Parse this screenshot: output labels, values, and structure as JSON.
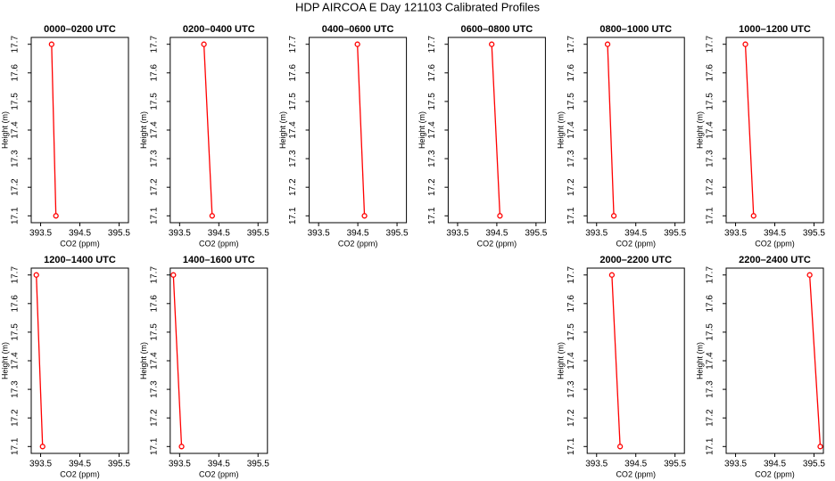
{
  "title": "HDP AIRCOA E  Day 121103  Calibrated Profiles",
  "chart_data": [
    {
      "type": "line",
      "title": "0000–0200 UTC",
      "x_label": "CO2 (ppm)",
      "y_label": "Height (m)",
      "x": [
        393.78,
        393.89
      ],
      "values": [
        17.7,
        17.1
      ],
      "color": "#ff0000",
      "xlim": [
        393.26,
        395.74
      ],
      "ylim": [
        17.076,
        17.724
      ],
      "xticks": [
        393.5,
        394.5,
        395.5
      ],
      "yticks": [
        17.1,
        17.2,
        17.3,
        17.4,
        17.5,
        17.6,
        17.7
      ]
    },
    {
      "type": "line",
      "title": "0200–0400 UTC",
      "x_label": "CO2 (ppm)",
      "y_label": "Height (m)",
      "x": [
        394.12,
        394.33
      ],
      "values": [
        17.7,
        17.1
      ],
      "color": "#ff0000",
      "xlim": [
        393.26,
        395.74
      ],
      "ylim": [
        17.076,
        17.724
      ],
      "xticks": [
        393.5,
        394.5,
        395.5
      ],
      "yticks": [
        17.1,
        17.2,
        17.3,
        17.4,
        17.5,
        17.6,
        17.7
      ]
    },
    {
      "type": "line",
      "title": "0400–0600 UTC",
      "x_label": "CO2 (ppm)",
      "y_label": "Height (m)",
      "x": [
        394.49,
        394.67
      ],
      "values": [
        17.7,
        17.1
      ],
      "color": "#ff0000",
      "xlim": [
        393.26,
        395.74
      ],
      "ylim": [
        17.076,
        17.724
      ],
      "xticks": [
        393.5,
        394.5,
        395.5
      ],
      "yticks": [
        17.1,
        17.2,
        17.3,
        17.4,
        17.5,
        17.6,
        17.7
      ]
    },
    {
      "type": "line",
      "title": "0600–0800 UTC",
      "x_label": "CO2 (ppm)",
      "y_label": "Height (m)",
      "x": [
        394.37,
        394.58
      ],
      "values": [
        17.7,
        17.1
      ],
      "color": "#ff0000",
      "xlim": [
        393.26,
        395.74
      ],
      "ylim": [
        17.076,
        17.724
      ],
      "xticks": [
        393.5,
        394.5,
        395.5
      ],
      "yticks": [
        17.1,
        17.2,
        17.3,
        17.4,
        17.5,
        17.6,
        17.7
      ]
    },
    {
      "type": "line",
      "title": "0800–1000 UTC",
      "x_label": "CO2 (ppm)",
      "y_label": "Height (m)",
      "x": [
        393.78,
        393.94
      ],
      "values": [
        17.7,
        17.1
      ],
      "color": "#ff0000",
      "xlim": [
        393.26,
        395.74
      ],
      "ylim": [
        17.076,
        17.724
      ],
      "xticks": [
        393.5,
        394.5,
        395.5
      ],
      "yticks": [
        17.1,
        17.2,
        17.3,
        17.4,
        17.5,
        17.6,
        17.7
      ]
    },
    {
      "type": "line",
      "title": "1000–1200 UTC",
      "x_label": "CO2 (ppm)",
      "y_label": "Height (m)",
      "x": [
        393.75,
        393.96
      ],
      "values": [
        17.7,
        17.1
      ],
      "color": "#ff0000",
      "xlim": [
        393.26,
        395.74
      ],
      "ylim": [
        17.076,
        17.724
      ],
      "xticks": [
        393.5,
        394.5,
        395.5
      ],
      "yticks": [
        17.1,
        17.2,
        17.3,
        17.4,
        17.5,
        17.6,
        17.7
      ]
    },
    {
      "type": "line",
      "title": "1200–1400 UTC",
      "x_label": "CO2 (ppm)",
      "y_label": "Height (m)",
      "x": [
        393.39,
        393.55
      ],
      "values": [
        17.7,
        17.1
      ],
      "color": "#ff0000",
      "xlim": [
        393.26,
        395.74
      ],
      "ylim": [
        17.076,
        17.724
      ],
      "xticks": [
        393.5,
        394.5,
        395.5
      ],
      "yticks": [
        17.1,
        17.2,
        17.3,
        17.4,
        17.5,
        17.6,
        17.7
      ]
    },
    {
      "type": "line",
      "title": "1400–1600 UTC",
      "x_label": "CO2 (ppm)",
      "y_label": "Height (m)",
      "x": [
        393.34,
        393.55
      ],
      "values": [
        17.7,
        17.1
      ],
      "color": "#ff0000",
      "xlim": [
        393.26,
        395.74
      ],
      "ylim": [
        17.076,
        17.724
      ],
      "xticks": [
        393.5,
        394.5,
        395.5
      ],
      "yticks": [
        17.1,
        17.2,
        17.3,
        17.4,
        17.5,
        17.6,
        17.7
      ]
    },
    {
      "type": "line",
      "title": "2000–2200 UTC",
      "x_label": "CO2 (ppm)",
      "y_label": "Height (m)",
      "x": [
        393.89,
        394.1
      ],
      "values": [
        17.7,
        17.1
      ],
      "color": "#ff0000",
      "xlim": [
        393.26,
        395.74
      ],
      "ylim": [
        17.076,
        17.724
      ],
      "xticks": [
        393.5,
        394.5,
        395.5
      ],
      "yticks": [
        17.1,
        17.2,
        17.3,
        17.4,
        17.5,
        17.6,
        17.7
      ]
    },
    {
      "type": "line",
      "title": "2200–2400 UTC",
      "x_label": "CO2 (ppm)",
      "y_label": "Height (m)",
      "x": [
        395.39,
        395.66
      ],
      "values": [
        17.7,
        17.1
      ],
      "color": "#ff0000",
      "xlim": [
        393.26,
        395.74
      ],
      "ylim": [
        17.076,
        17.724
      ],
      "xticks": [
        393.5,
        394.5,
        395.5
      ],
      "yticks": [
        17.1,
        17.2,
        17.3,
        17.4,
        17.5,
        17.6,
        17.7
      ]
    }
  ]
}
